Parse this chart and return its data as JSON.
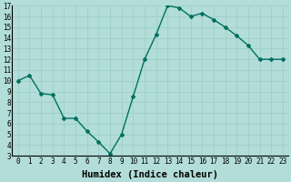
{
  "x": [
    0,
    1,
    2,
    3,
    4,
    5,
    6,
    7,
    8,
    9,
    10,
    11,
    12,
    13,
    14,
    15,
    16,
    17,
    18,
    19,
    20,
    21,
    22,
    23
  ],
  "y": [
    10,
    10.5,
    8.8,
    8.7,
    6.5,
    6.5,
    5.3,
    4.3,
    3.2,
    5.0,
    8.5,
    12.0,
    14.3,
    17.0,
    16.8,
    16.0,
    16.3,
    15.7,
    15.0,
    14.2,
    13.3,
    12.0,
    12.0,
    12.0
  ],
  "line_color": "#007060",
  "marker": "D",
  "marker_size": 2,
  "bg_color": "#b2ddd8",
  "grid_color": "#9ecfca",
  "xlabel": "Humidex (Indice chaleur)",
  "xlim": [
    -0.5,
    23.5
  ],
  "ylim": [
    3,
    17
  ],
  "yticks": [
    3,
    4,
    5,
    6,
    7,
    8,
    9,
    10,
    11,
    12,
    13,
    14,
    15,
    16,
    17
  ],
  "xticks": [
    0,
    1,
    2,
    3,
    4,
    5,
    6,
    7,
    8,
    9,
    10,
    11,
    12,
    13,
    14,
    15,
    16,
    17,
    18,
    19,
    20,
    21,
    22,
    23
  ],
  "tick_fontsize": 5.5,
  "xlabel_fontsize": 7.5,
  "label_color": "#000000"
}
